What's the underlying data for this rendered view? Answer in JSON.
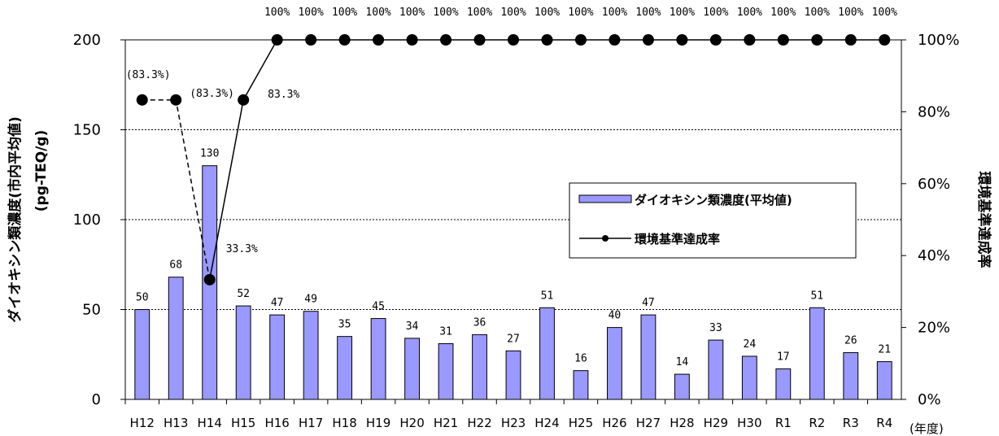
{
  "chart_data": {
    "type": "bar+line",
    "categories": [
      "H12",
      "H13",
      "H14",
      "H15",
      "H16",
      "H17",
      "H18",
      "H19",
      "H20",
      "H21",
      "H22",
      "H23",
      "H24",
      "H25",
      "H26",
      "H27",
      "H28",
      "H29",
      "H30",
      "R1",
      "R2",
      "R3",
      "R4"
    ],
    "x_unit": "(年度)",
    "series": [
      {
        "name": "ダイオキシン類濃度(平均値)",
        "type": "bar",
        "axis": "left",
        "color": "#9999ff",
        "values": [
          50,
          68,
          130,
          52,
          47,
          49,
          35,
          45,
          34,
          31,
          36,
          27,
          51,
          16,
          40,
          47,
          14,
          33,
          24,
          17,
          51,
          26,
          21
        ],
        "labels": [
          "50",
          "68",
          "130",
          "52",
          "47",
          "49",
          "35",
          "45",
          "34",
          "31",
          "36",
          "27",
          "51",
          "16",
          "40",
          "47",
          "14",
          "33",
          "24",
          "17",
          "51",
          "26",
          "21"
        ]
      },
      {
        "name": "環境基準達成率",
        "type": "line",
        "axis": "right",
        "color": "#000000",
        "values": [
          83.3,
          83.3,
          33.3,
          83.3,
          100,
          100,
          100,
          100,
          100,
          100,
          100,
          100,
          100,
          100,
          100,
          100,
          100,
          100,
          100,
          100,
          100,
          100,
          100
        ],
        "point_labels": [
          "(83.3%)",
          "(83.3%)",
          "33.3%",
          "83.3%"
        ],
        "top_labels": [
          "100%",
          "100%",
          "100%",
          "100%",
          "100%",
          "100%",
          "100%",
          "100%",
          "100%",
          "100%",
          "100%",
          "100%",
          "100%",
          "100%",
          "100%",
          "100%",
          "100%",
          "100%",
          "100%"
        ]
      }
    ],
    "ylabel_left": "ダイオキシン類濃度(市内平均値)",
    "ylabel_left_unit": "(pg-TEQ/g)",
    "ylabel_right": "環境基準達成率",
    "ylim_left": [
      0,
      200
    ],
    "ylim_right": [
      0,
      100
    ],
    "yticks_left": [
      "0",
      "50",
      "100",
      "150",
      "200"
    ],
    "yticks_right": [
      "0%",
      "20%",
      "40%",
      "60%",
      "80%",
      "100%"
    ],
    "grid": "horizontal dotted",
    "legend_position": "center-right"
  }
}
